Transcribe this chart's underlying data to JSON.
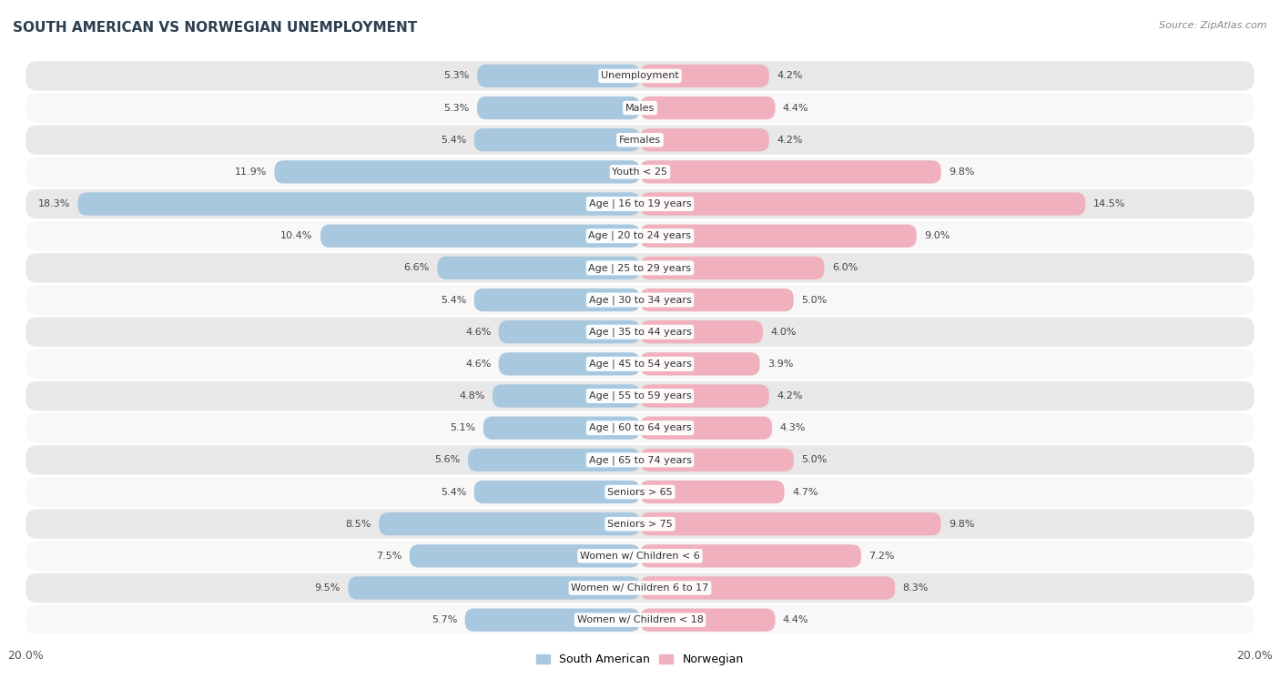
{
  "title": "SOUTH AMERICAN VS NORWEGIAN UNEMPLOYMENT",
  "source": "Source: ZipAtlas.com",
  "categories": [
    "Unemployment",
    "Males",
    "Females",
    "Youth < 25",
    "Age | 16 to 19 years",
    "Age | 20 to 24 years",
    "Age | 25 to 29 years",
    "Age | 30 to 34 years",
    "Age | 35 to 44 years",
    "Age | 45 to 54 years",
    "Age | 55 to 59 years",
    "Age | 60 to 64 years",
    "Age | 65 to 74 years",
    "Seniors > 65",
    "Seniors > 75",
    "Women w/ Children < 6",
    "Women w/ Children 6 to 17",
    "Women w/ Children < 18"
  ],
  "south_american": [
    5.3,
    5.3,
    5.4,
    11.9,
    18.3,
    10.4,
    6.6,
    5.4,
    4.6,
    4.6,
    4.8,
    5.1,
    5.6,
    5.4,
    8.5,
    7.5,
    9.5,
    5.7
  ],
  "norwegian": [
    4.2,
    4.4,
    4.2,
    9.8,
    14.5,
    9.0,
    6.0,
    5.0,
    4.0,
    3.9,
    4.2,
    4.3,
    5.0,
    4.7,
    9.8,
    7.2,
    8.3,
    4.4
  ],
  "sa_color": "#a8c8e0",
  "no_color": "#f0b0be",
  "bg_row_light": "#e8e8e8",
  "bg_row_white": "#f8f8f8",
  "max_val": 20.0,
  "legend_sa": "South American",
  "legend_no": "Norwegian"
}
